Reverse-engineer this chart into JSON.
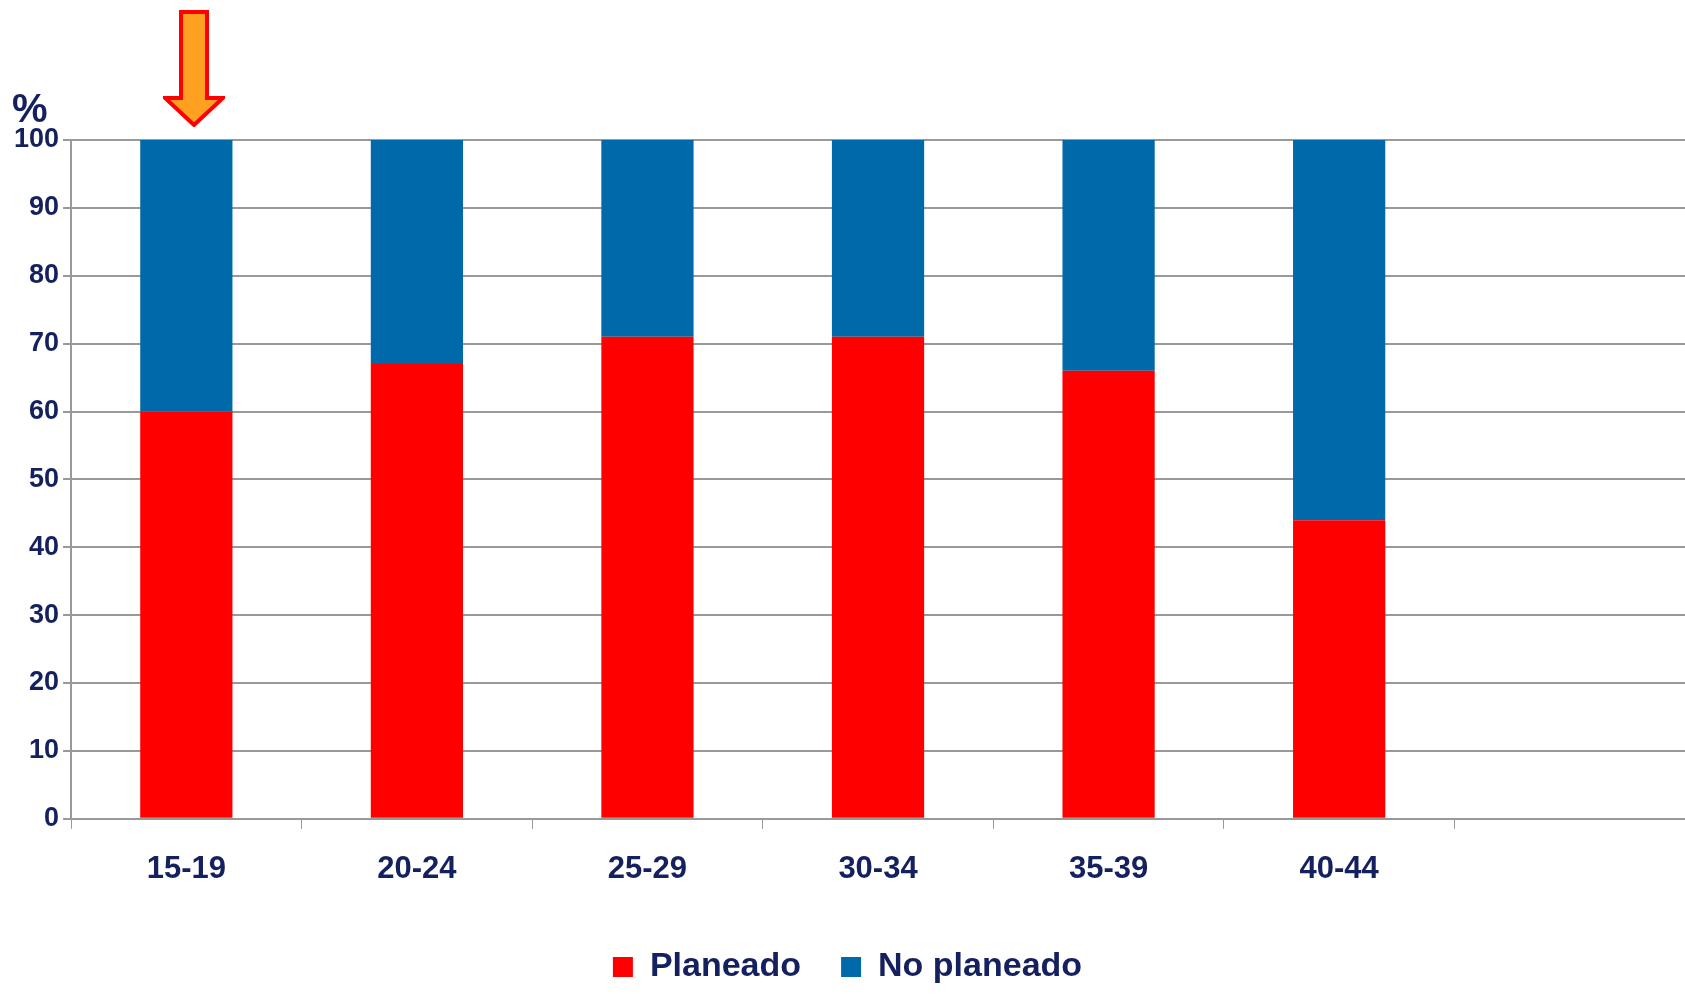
{
  "chart_data": {
    "type": "bar",
    "stacked": true,
    "ylabel": "%",
    "categories": [
      "15-19",
      "20-24",
      "25-29",
      "30-34",
      "35-39",
      "40-44",
      null
    ],
    "series": [
      {
        "name": "Planeado",
        "color": "#ff0000",
        "values": [
          60,
          67,
          71,
          71,
          66,
          44,
          null
        ]
      },
      {
        "name": "No planeado",
        "color": "#0069aa",
        "values": [
          40,
          33,
          29,
          29,
          34,
          56,
          null
        ]
      }
    ],
    "ylim": [
      0,
      100
    ],
    "yticks": [
      0,
      10,
      20,
      30,
      40,
      50,
      60,
      70,
      80,
      90,
      100
    ],
    "grid": "y",
    "legend": "bottom"
  }
}
